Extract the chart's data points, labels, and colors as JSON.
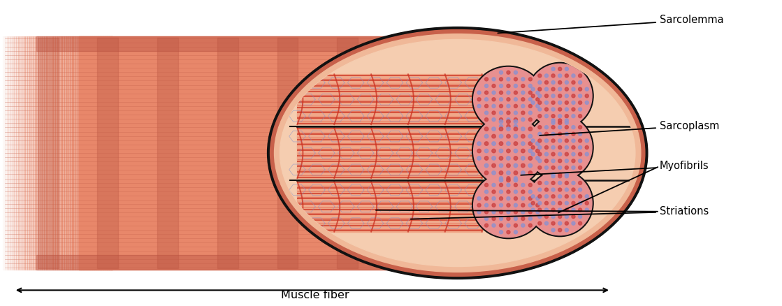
{
  "fig_width": 11.19,
  "fig_height": 4.38,
  "dpi": 100,
  "bg_color": "#ffffff",
  "fiber_main_color": "#e8876a",
  "fiber_stripe_color": "#c4604a",
  "fiber_top_highlight": "#d4705a",
  "sarcolemma_outer_color": "#c8604a",
  "sarcolemma_mid_color": "#f0b898",
  "sarcolemma_inner_bg": "#f5cdb0",
  "sarcoplasm_bg": "#f5cdb0",
  "myofibril_bg": "#f0a888",
  "myofibril_stripe_dark": "#cc3020",
  "myofibril_stripe_med": "#e06050",
  "myofibril_stripe_light": "#f0a898",
  "myofibril_hex_color": "#8090cc",
  "myofibril_hex_bg": "#c0a0a0",
  "cross_fill": "#e89090",
  "cross_dot": "#cc4444",
  "cross_dot_light": "#9090cc",
  "divider_color": "#111111",
  "label_fontsize": 10.5,
  "arrow_lw": 1.3,
  "labels": {
    "sarcolemma": "Sarcolemma",
    "sarcoplasm": "Sarcoplasm",
    "myofibrils": "Myofibrils",
    "striations": "Striations",
    "muscle_fiber": "Muscle fiber"
  }
}
